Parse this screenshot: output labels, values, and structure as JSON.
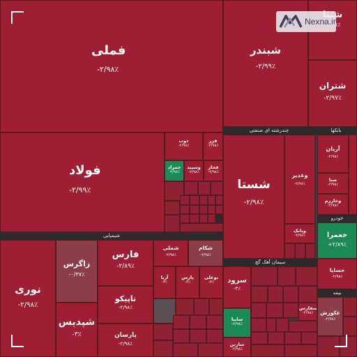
{
  "logo": {
    "text": "Nexna.ir"
  },
  "sectors": {
    "petro": "چندرشته ای صنعتی",
    "chem": "شیمیایی",
    "cement": "سیمان آهک گچ",
    "banks": "بانکها",
    "auto": "خودرو",
    "ins": "بیمه",
    "retail": "گذاری"
  },
  "tiles": {
    "fameli": {
      "name": "فملی",
      "pct": "-۲/۹۸٪"
    },
    "shabandar": {
      "name": "شبندر",
      "pct": "-۲/۹۹٪"
    },
    "shatran": {
      "name": "شتران",
      "pct": "-۲/۹۷٪"
    },
    "shapna": {
      "name": "شپنا",
      "pct": "-۲/۹۸٪"
    },
    "foolad": {
      "name": "فولاد",
      "pct": "-۲/۹۹٪"
    },
    "shasta": {
      "name": "شستا",
      "pct": "-۲/۹۸٪"
    },
    "vghadir": {
      "name": "وغدیر",
      "pct": "-۲/۹۶٪"
    },
    "vbank": {
      "name": "وبانک",
      "pct": "-۲/۹۶٪"
    },
    "noori": {
      "name": "نوری",
      "pct": "-۲/۹۸٪"
    },
    "zagros": {
      "name": "زاگرس",
      "pct": "-۰/۳۷٪"
    },
    "shpdis": {
      "name": "شپدیس",
      "pct": "-۳٪"
    },
    "fars": {
      "name": "فارس",
      "pct": "-۲/۸۹٪"
    },
    "tapiko": {
      "name": "تاپیکو",
      "pct": "-۲/۹۸٪"
    },
    "parsan": {
      "name": "پارسان",
      "pct": "-۲/۹۸٪"
    },
    "khomra": {
      "name": "خعمرا",
      "pct": "+۲/۸۹٪"
    },
    "aryan": {
      "name": "آریان",
      "pct": "-۲/۹۸٪"
    },
    "saina": {
      "name": "صبا",
      "pct": "-۲/۹۸٪"
    },
    "vkharazm": {
      "name": "وخارزم",
      "pct": "-۲/۹۸٪"
    },
    "sarvod": {
      "name": "سرود",
      "pct": "-۳٪"
    },
    "sabia": {
      "name": "سابیا",
      "pct": "-۲/۹۸٪"
    },
    "ghzob": {
      "name": "ذوب",
      "pct": "-۲/۹۸٪"
    },
    "frazer": {
      "name": "فزر",
      "pct": "-۲/۹۸٪"
    },
    "hamrad": {
      "name": "خمراد",
      "pct": "-۲/۹۸٪"
    },
    "vsapid": {
      "name": "وسپید",
      "pct": "-۲/۹۸٪"
    },
    "fakhaz": {
      "name": "فخاز",
      "pct": "-۲/۹۸٪"
    },
    "shemli": {
      "name": "شملی",
      "pct": "-۲/۹۸٪"
    },
    "shkam": {
      "name": "شکام",
      "pct": "-۲/۹۸٪"
    },
    "boali": {
      "name": "بوعلی",
      "pct": "-۳٪"
    },
    "arya": {
      "name": "آریا",
      "pct": "-۳٪"
    },
    "pars": {
      "name": "پارس",
      "pct": "-۳٪"
    },
    "kesava": {
      "name": "خساپا",
      "pct": "-۲/۹۸٪"
    },
    "kharsanid": {
      "name": "غکورش",
      "pct": "-۲/۹۸٪"
    },
    "sarood2": {
      "name": "سارین",
      "pct": "-۲/۹۸٪"
    },
    "sfars": {
      "name": "سفارس",
      "pct": "-۲/۹۸٪"
    }
  }
}
